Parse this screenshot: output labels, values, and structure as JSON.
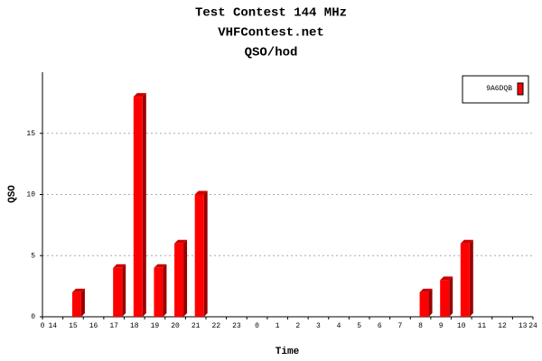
{
  "chart_data": {
    "type": "bar3d",
    "title": "Test Contest 144 MHz",
    "subtitle": "VHFContest.net",
    "subtitle2": "QSO/hod",
    "x_label": "Time",
    "y_label": "QSO",
    "categories": [
      "14",
      "15",
      "16",
      "17",
      "18",
      "19",
      "20",
      "21",
      "22",
      "23",
      "0",
      "1",
      "2",
      "3",
      "4",
      "5",
      "6",
      "7",
      "8",
      "9",
      "10",
      "11",
      "12",
      "13"
    ],
    "xlim": [
      0,
      24
    ],
    "xticks": [
      0,
      24
    ],
    "series": [
      {
        "name": "9A6DQB",
        "color": "#ff0000",
        "values": [
          0,
          2,
          0,
          4,
          18,
          4,
          6,
          10,
          0,
          0,
          0,
          0,
          0,
          0,
          0,
          0,
          0,
          0,
          2,
          3,
          6,
          0,
          0,
          0
        ]
      }
    ],
    "ylim": [
      0,
      20
    ],
    "yticks": [
      0,
      5,
      10,
      15
    ],
    "grid": true
  }
}
